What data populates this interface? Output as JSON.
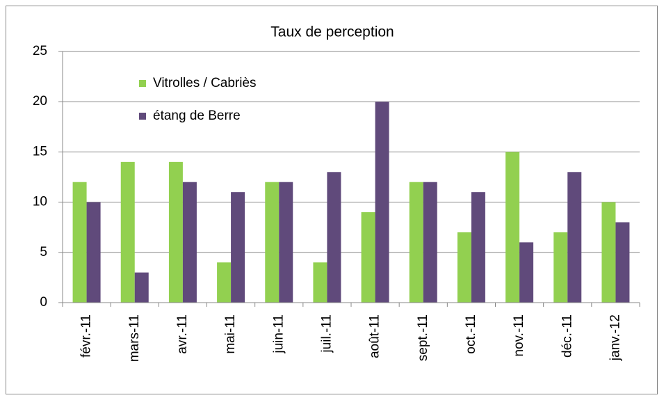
{
  "chart_data": {
    "type": "bar",
    "title": "Taux de perception",
    "categories": [
      "févr.-11",
      "mars-11",
      "avr.-11",
      "mai-11",
      "juin-11",
      "juil.-11",
      "août-11",
      "sept.-11",
      "oct.-11",
      "nov.-11",
      "déc.-11",
      "janv.-12"
    ],
    "series": [
      {
        "name": "Vitrolles / Cabriès",
        "color": "#92d050",
        "values": [
          12,
          14,
          14,
          4,
          12,
          4,
          9,
          12,
          7,
          15,
          7,
          10
        ]
      },
      {
        "name": "étang de Berre",
        "color": "#604a7b",
        "values": [
          10,
          3,
          12,
          11,
          12,
          13,
          20,
          12,
          11,
          6,
          13,
          8
        ]
      }
    ],
    "ylim": [
      0,
      25
    ],
    "yticks": [
      0,
      5,
      10,
      15,
      20,
      25
    ],
    "grid": true,
    "legend": "top-left"
  }
}
